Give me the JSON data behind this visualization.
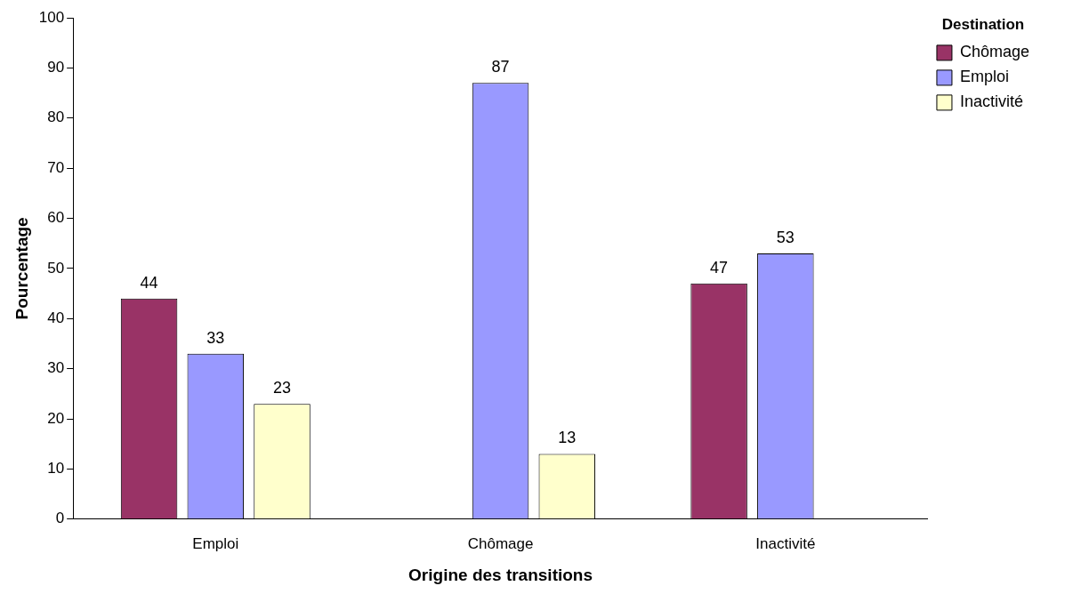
{
  "chart_data": {
    "type": "bar",
    "xlabel": "Origine des transitions",
    "ylabel": "Pourcentage",
    "legend_title": "Destination",
    "categories": [
      "Emploi",
      "Chômage",
      "Inactivité"
    ],
    "series": [
      {
        "name": "Chômage",
        "color": "#993366",
        "values": [
          44,
          null,
          47
        ]
      },
      {
        "name": "Emploi",
        "color": "#9999ff",
        "values": [
          33,
          87,
          53
        ]
      },
      {
        "name": "Inactivité",
        "color": "#ffffcc",
        "values": [
          23,
          13,
          null
        ]
      }
    ],
    "ylim": [
      0,
      100
    ],
    "yticks": [
      0,
      10,
      20,
      30,
      40,
      50,
      60,
      70,
      80,
      90,
      100
    ],
    "grid": false,
    "legend": "top right",
    "data_labels": true
  }
}
